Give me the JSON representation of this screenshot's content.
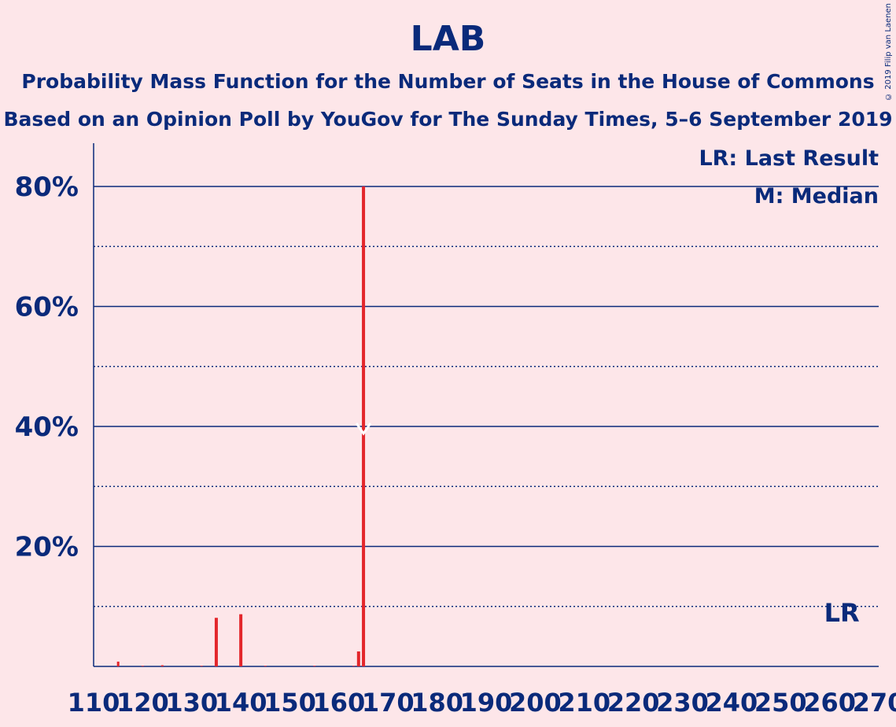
{
  "chart_data": {
    "type": "bar",
    "title": "LAB",
    "subtitle_lines": [
      "Probability Mass Function for the Number of Seats in the House of Commons",
      "Based on an Opinion Poll by YouGov for The Sunday Times, 5–6 September 2019"
    ],
    "legend": [
      "LR: Last Result",
      "M: Median"
    ],
    "copyright": "© 2019 Filip van Laenen",
    "xlim": [
      110,
      270
    ],
    "ylim": [
      0,
      85
    ],
    "y_major_ticks": [
      20,
      40,
      60,
      80
    ],
    "y_minor_ticks": [
      10,
      30,
      50,
      70
    ],
    "y_tick_labels": [
      "20%",
      "40%",
      "60%",
      "80%"
    ],
    "x_tick_values": [
      110,
      120,
      130,
      140,
      150,
      160,
      170,
      180,
      190,
      200,
      210,
      220,
      230,
      240,
      250,
      260,
      270
    ],
    "x_tick_labels": [
      "110",
      "120",
      "130",
      "140",
      "150",
      "160",
      "170",
      "180",
      "190",
      "200",
      "210",
      "220",
      "230",
      "240",
      "250",
      "260",
      "270"
    ],
    "bars": [
      {
        "x": 115,
        "y": 0.8
      },
      {
        "x": 120,
        "y": 0.1
      },
      {
        "x": 124,
        "y": 0.2
      },
      {
        "x": 132,
        "y": 0.1
      },
      {
        "x": 135,
        "y": 8.1
      },
      {
        "x": 140,
        "y": 8.7
      },
      {
        "x": 145,
        "y": 0.1
      },
      {
        "x": 155,
        "y": 0.1
      },
      {
        "x": 163,
        "y": 0.1
      },
      {
        "x": 164,
        "y": 2.5
      },
      {
        "x": 165,
        "y": 80.0
      }
    ],
    "median": {
      "x": 165,
      "y": 40,
      "label": "M"
    },
    "last_result": {
      "x": 262,
      "label": "LR"
    },
    "colors": {
      "bar": "#e3262b",
      "axis": "#0a2a7a",
      "background": "#fde6e9"
    }
  }
}
